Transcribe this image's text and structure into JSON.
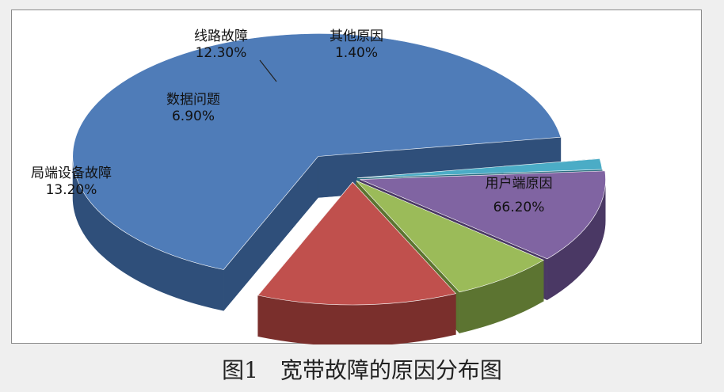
{
  "caption": "图1　宽带故障的原因分布图",
  "chart_data": {
    "type": "pie",
    "style": "3d-exploded",
    "title": "",
    "legend": "none",
    "slices": [
      {
        "name": "用户端原因",
        "value": 66.2,
        "value_label": "66.20%",
        "color": "#4f7cb8",
        "side_color": "#2f4f7a"
      },
      {
        "name": "局端设备故障",
        "value": 13.2,
        "value_label": "13.20%",
        "color": "#c0504d",
        "side_color": "#7a2f2c"
      },
      {
        "name": "数据问题",
        "value": 6.9,
        "value_label": "6.90%",
        "color": "#9bbb59",
        "side_color": "#5c7431"
      },
      {
        "name": "线路故障",
        "value": 12.3,
        "value_label": "12.30%",
        "color": "#8064a2",
        "side_color": "#4a3864"
      },
      {
        "name": "其他原因",
        "value": 1.4,
        "value_label": "1.40%",
        "color": "#4bacc6",
        "side_color": "#2a6e80"
      }
    ]
  }
}
